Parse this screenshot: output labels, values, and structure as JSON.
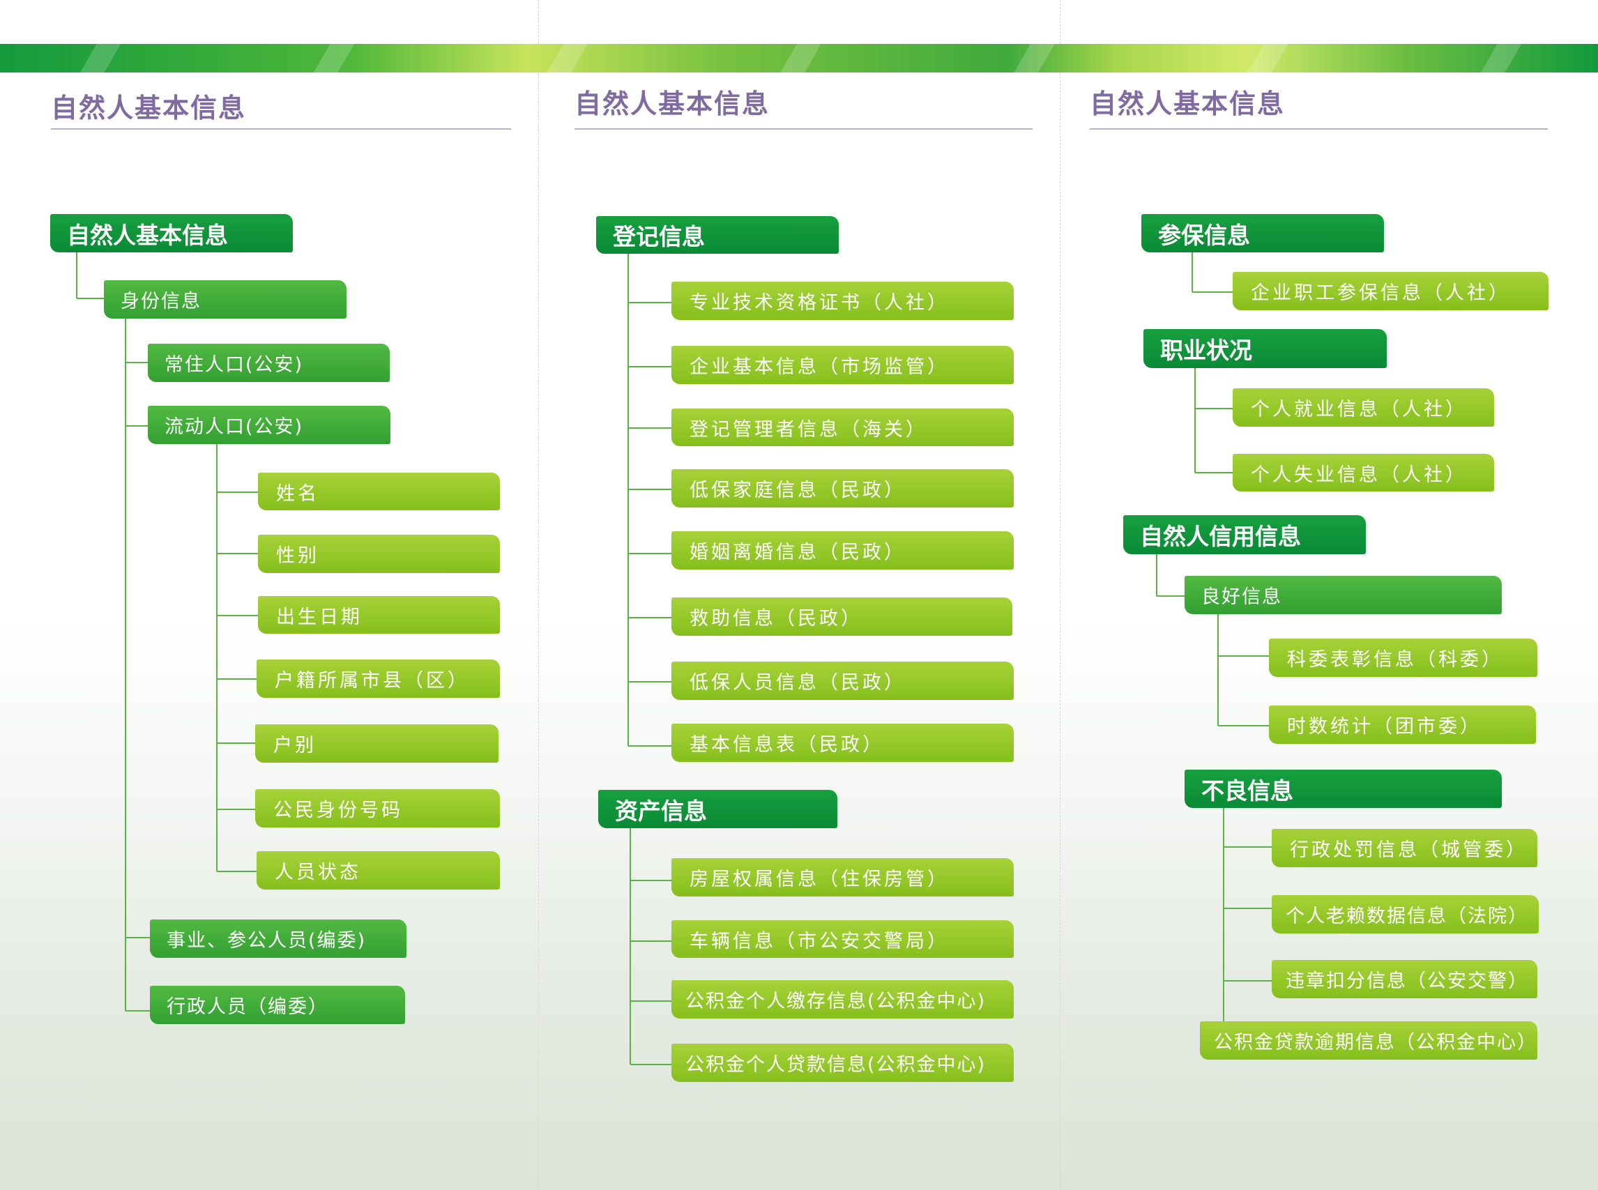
{
  "columns": [
    {
      "title": "自然人基本信息"
    },
    {
      "title": "自然人基本信息"
    },
    {
      "title": "自然人基本信息"
    }
  ],
  "col1": {
    "root": "自然人基本信息",
    "identity": "身份信息",
    "resident": "常住人口(公安)",
    "floating": "流动人口(公安)",
    "fields": [
      "姓名",
      "性别",
      "出生日期",
      "户籍所属市县（区）",
      "户别",
      "公民身份号码",
      "人员状态"
    ],
    "institution": "事业、参公人员(编委)",
    "admin": "行政人员（编委）"
  },
  "col2": {
    "registration": "登记信息",
    "registration_items": [
      "专业技术资格证书（人社）",
      "企业基本信息（市场监管）",
      "登记管理者信息（海关）",
      "低保家庭信息（民政）",
      "婚姻离婚信息（民政）",
      "救助信息（民政）",
      "低保人员信息（民政）",
      "基本信息表（民政）"
    ],
    "assets": "资产信息",
    "asset_items": [
      "房屋权属信息（住保房管）",
      "车辆信息（市公安交警局）",
      "公积金个人缴存信息(公积金中心)",
      "公积金个人贷款信息(公积金中心)"
    ]
  },
  "col3": {
    "insurance": "参保信息",
    "insurance_items": [
      "企业职工参保信息（人社）"
    ],
    "employment": "职业状况",
    "employment_items": [
      "个人就业信息（人社）",
      "个人失业信息（人社）"
    ],
    "credit": "自然人信用信息",
    "good": "良好信息",
    "good_items": [
      "科委表彰信息（科委）",
      "时数统计（团市委）"
    ],
    "bad": "不良信息",
    "bad_items": [
      "行政处罚信息（城管委）",
      "个人老赖数据信息（法院）",
      "违章扣分信息（公安交警）",
      "公积金贷款逾期信息（公积金中心）"
    ]
  },
  "colors": {
    "dark_green": "#0f913a",
    "mid_green": "#3fa836",
    "lime": "#97c929",
    "title_purple": "#7f6aa2",
    "connector": "#5ab245"
  }
}
